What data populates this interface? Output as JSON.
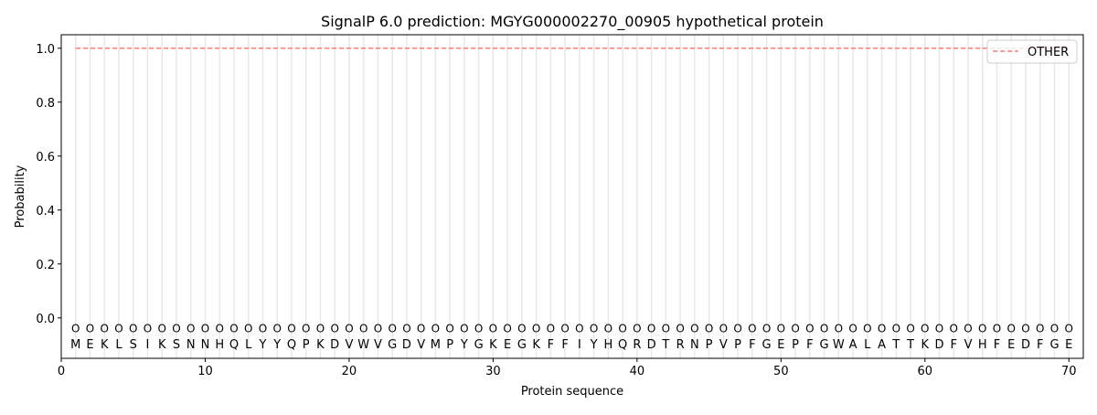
{
  "chart_data": {
    "type": "line",
    "title": "SignalP 6.0 prediction: MGYG000002270_00905 hypothetical protein",
    "xlabel": "Protein sequence",
    "ylabel": "Probability",
    "xlim": [
      0,
      71
    ],
    "ylim": [
      -0.15,
      1.05
    ],
    "xticks": [
      0,
      10,
      20,
      30,
      40,
      50,
      60,
      70
    ],
    "yticks": [
      0.0,
      0.2,
      0.4,
      0.6,
      0.8,
      1.0
    ],
    "sequence": [
      "M",
      "E",
      "K",
      "L",
      "S",
      "I",
      "K",
      "S",
      "N",
      "N",
      "H",
      "Q",
      "L",
      "Y",
      "Y",
      "Q",
      "P",
      "K",
      "D",
      "V",
      "W",
      "V",
      "G",
      "D",
      "V",
      "M",
      "P",
      "Y",
      "G",
      "K",
      "E",
      "G",
      "K",
      "F",
      "F",
      "I",
      "Y",
      "H",
      "Q",
      "R",
      "D",
      "T",
      "R",
      "N",
      "P",
      "V",
      "P",
      "F",
      "G",
      "E",
      "P",
      "F",
      "G",
      "W",
      "A",
      "L",
      "A",
      "T",
      "T",
      "K",
      "D",
      "F",
      "V",
      "H",
      "F",
      "E",
      "D",
      "F",
      "G",
      "E"
    ],
    "region_label": "O",
    "series": [
      {
        "name": "OTHER",
        "color": "#f08080",
        "style": "dashed",
        "x_range": [
          1,
          70
        ],
        "value": 1.0
      }
    ],
    "legend": "top-right",
    "grid": "vertical lines at each residue"
  }
}
